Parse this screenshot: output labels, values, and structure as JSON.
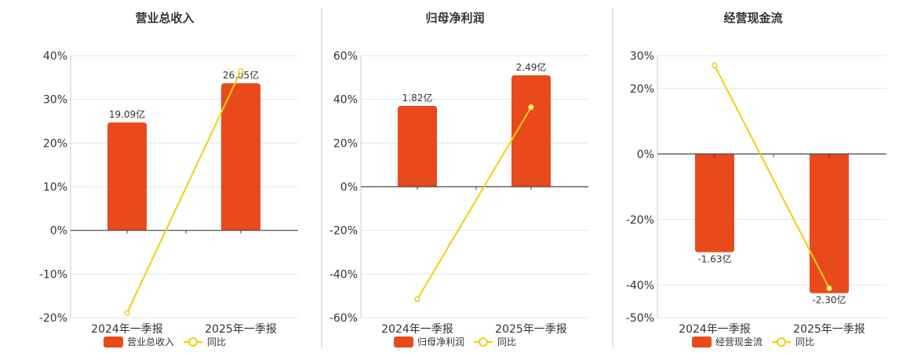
{
  "page": {
    "divider_color": "#c8c8c8"
  },
  "colors": {
    "bar": "#e84a1b",
    "line": "#f2cf0e",
    "axis": "#444444",
    "grid": "#e3e6ef"
  },
  "chart_data": [
    {
      "type": "bar",
      "title": "营业总收入",
      "categories": [
        "2024年一季报",
        "2025年一季报"
      ],
      "ylim": [
        -20,
        40
      ],
      "yticks": [
        40,
        30,
        20,
        10,
        0,
        -10,
        -20
      ],
      "tick_labels": [
        "40%",
        "30%",
        "20%",
        "10%",
        "0%",
        "-10%",
        "-20%"
      ],
      "bar_values_pct": [
        24.7,
        33.7
      ],
      "bar_labels": [
        "19.09亿",
        "26.05亿"
      ],
      "series": [
        {
          "name": "营业总收入",
          "values": [
            19.09,
            26.05
          ],
          "unit": "亿"
        },
        {
          "name": "同比",
          "values": [
            -18.9,
            36.5
          ],
          "unit": "%"
        }
      ],
      "legend": [
        "营业总收入",
        "同比"
      ],
      "legend_position": "bottom"
    },
    {
      "type": "bar",
      "title": "归母净利润",
      "categories": [
        "2024年一季报",
        "2025年一季报"
      ],
      "ylim": [
        -60,
        60
      ],
      "yticks": [
        60,
        40,
        20,
        0,
        -20,
        -40,
        -60
      ],
      "tick_labels": [
        "60%",
        "40%",
        "20%",
        "0%",
        "-20%",
        "-40%",
        "-60%"
      ],
      "bar_values_pct": [
        37.0,
        51.0
      ],
      "bar_labels": [
        "1.82亿",
        "2.49亿"
      ],
      "series": [
        {
          "name": "归母净利润",
          "values": [
            1.82,
            2.49
          ],
          "unit": "亿"
        },
        {
          "name": "同比",
          "values": [
            -51.5,
            36.4
          ],
          "unit": "%"
        }
      ],
      "legend": [
        "归母净利润",
        "同比"
      ],
      "legend_position": "bottom"
    },
    {
      "type": "bar",
      "title": "经营现金流",
      "categories": [
        "2024年一季报",
        "2025年一季报"
      ],
      "ylim": [
        -50,
        30
      ],
      "yticks": [
        30,
        20,
        0,
        -20,
        -40,
        -50
      ],
      "tick_labels": [
        "30%",
        "20%",
        "0%",
        "-20%",
        "-40%",
        "-50%"
      ],
      "bar_values_pct": [
        -30.0,
        -42.5
      ],
      "bar_labels": [
        "-1.63亿",
        "-2.30亿"
      ],
      "series": [
        {
          "name": "经营现金流",
          "values": [
            -1.63,
            -2.3
          ],
          "unit": "亿"
        },
        {
          "name": "同比",
          "values": [
            27.0,
            -41.0
          ],
          "unit": "%"
        }
      ],
      "legend": [
        "经营现金流",
        "同比"
      ],
      "legend_position": "bottom"
    }
  ]
}
